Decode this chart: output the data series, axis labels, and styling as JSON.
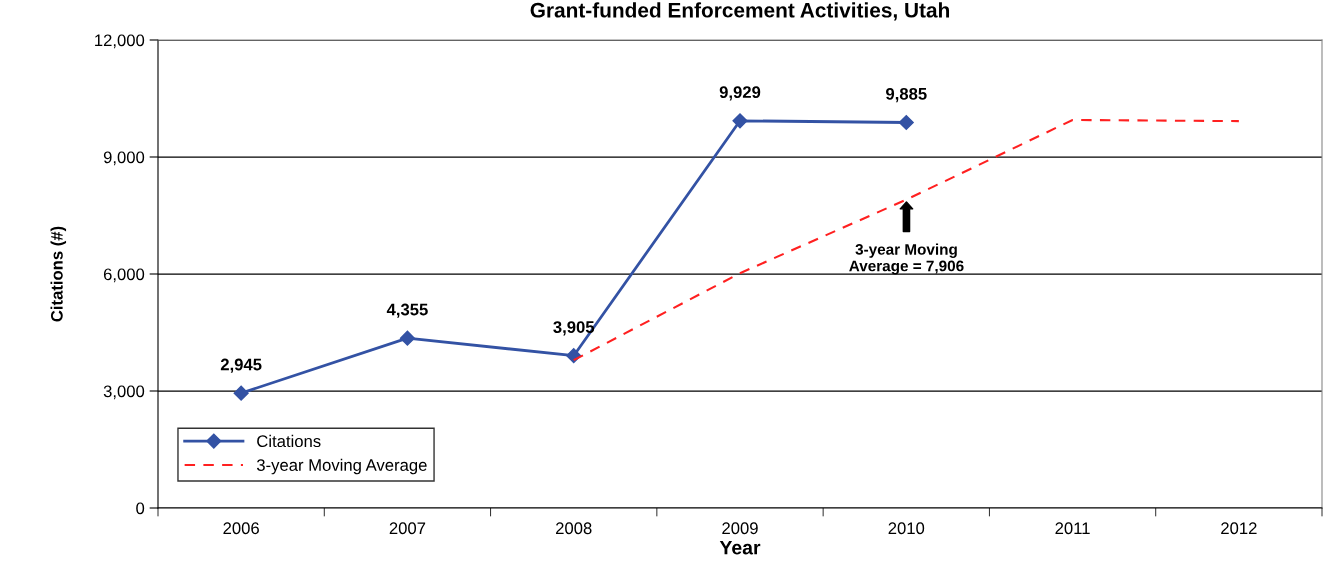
{
  "chart_data": {
    "type": "line",
    "title": "Grant-funded Enforcement Activities, Utah",
    "xlabel": "Year",
    "ylabel": "Citations (#)",
    "categories": [
      "2006",
      "2007",
      "2008",
      "2009",
      "2010",
      "2011",
      "2012"
    ],
    "series": [
      {
        "name": "Citations",
        "color": "#3352a4",
        "marker": "diamond",
        "line_style": "solid",
        "values": [
          2945,
          4355,
          3905,
          9929,
          9885,
          null,
          null
        ],
        "value_labels": [
          "2,945",
          "4,355",
          "3,905",
          "9,929",
          "9,885",
          null,
          null
        ]
      },
      {
        "name": "3-year Moving Average",
        "color": "#ff2020",
        "marker": "none",
        "line_style": "dashed",
        "values": [
          null,
          null,
          3790,
          6020,
          7906,
          9950,
          9920
        ]
      }
    ],
    "ylim": [
      0,
      12000
    ],
    "yticks": [
      {
        "value": 0,
        "label": "0"
      },
      {
        "value": 3000,
        "label": "3,000"
      },
      {
        "value": 6000,
        "label": "6,000"
      },
      {
        "value": 9000,
        "label": "9,000"
      },
      {
        "value": 12000,
        "label": "12,000"
      }
    ],
    "grid": "y",
    "legend": "bottom left",
    "annotations": [
      "3-year Moving\nAverage = 7,906"
    ]
  }
}
